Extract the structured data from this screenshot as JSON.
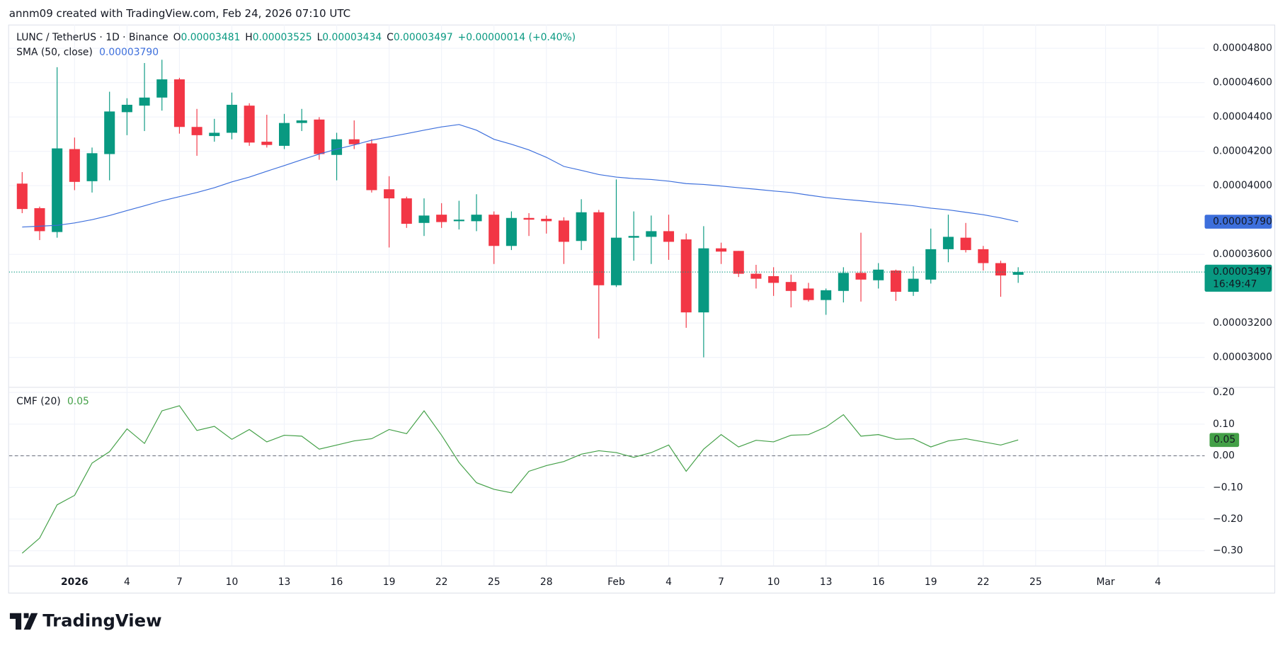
{
  "header": {
    "credit": "annm09 created with TradingView.com, Feb 24, 2026 07:10 UTC"
  },
  "footer": {
    "brand": "TradingView"
  },
  "chart_data": {
    "type": "candlestick",
    "title": "LUNC / TetherUS · 1D · Binance",
    "ohlc_labels": [
      "O",
      "H",
      "L",
      "C"
    ],
    "change_label": "+0.00000014 (+0.40%)",
    "countdown": "16:49:47",
    "up_color": "#089981",
    "down_color": "#f23645",
    "x": [
      "2025-12-29",
      "2025-12-30",
      "2025-12-31",
      "2026-01-01",
      "2026-01-02",
      "2026-01-03",
      "2026-01-04",
      "2026-01-05",
      "2026-01-06",
      "2026-01-07",
      "2026-01-08",
      "2026-01-09",
      "2026-01-10",
      "2026-01-11",
      "2026-01-12",
      "2026-01-13",
      "2026-01-14",
      "2026-01-15",
      "2026-01-16",
      "2026-01-17",
      "2026-01-18",
      "2026-01-19",
      "2026-01-20",
      "2026-01-21",
      "2026-01-22",
      "2026-01-23",
      "2026-01-24",
      "2026-01-25",
      "2026-01-26",
      "2026-01-27",
      "2026-01-28",
      "2026-01-29",
      "2026-01-30",
      "2026-01-31",
      "2026-02-01",
      "2026-02-02",
      "2026-02-03",
      "2026-02-04",
      "2026-02-05",
      "2026-02-06",
      "2026-02-07",
      "2026-02-08",
      "2026-02-09",
      "2026-02-10",
      "2026-02-11",
      "2026-02-12",
      "2026-02-13",
      "2026-02-14",
      "2026-02-15",
      "2026-02-16",
      "2026-02-17",
      "2026-02-18",
      "2026-02-19",
      "2026-02-20",
      "2026-02-21",
      "2026-02-22",
      "2026-02-23",
      "2026-02-24"
    ],
    "open": [
      4.012e-05,
      3.869e-05,
      3.73e-05,
      4.213e-05,
      4.026e-05,
      4.184e-05,
      4.428e-05,
      4.466e-05,
      4.513e-05,
      4.619e-05,
      4.342e-05,
      4.289e-05,
      4.308e-05,
      4.466e-05,
      4.256e-05,
      4.232e-05,
      4.365e-05,
      4.385e-05,
      4.179e-05,
      4.27e-05,
      4.246e-05,
      3.979e-05,
      3.926e-05,
      3.783e-05,
      3.831e-05,
      3.793e-05,
      3.793e-05,
      3.831e-05,
      3.649e-05,
      3.812e-05,
      3.807e-05,
      3.797e-05,
      3.678e-05,
      3.845e-05,
      3.42e-05,
      3.697e-05,
      3.702e-05,
      3.735e-05,
      3.687e-05,
      3.262e-05,
      3.635e-05,
      3.62e-05,
      3.487e-05,
      3.473e-05,
      3.439e-05,
      3.401e-05,
      3.334e-05,
      3.387e-05,
      3.492e-05,
      3.449e-05,
      3.506e-05,
      3.382e-05,
      3.453e-05,
      3.63e-05,
      3.697e-05,
      3.63e-05,
      3.549e-05,
      3.481e-05
    ],
    "high": [
      4.079e-05,
      3.878e-05,
      4.69e-05,
      4.28e-05,
      4.222e-05,
      4.547e-05,
      4.509e-05,
      4.714e-05,
      4.733e-05,
      4.628e-05,
      4.447e-05,
      4.389e-05,
      4.542e-05,
      4.48e-05,
      4.413e-05,
      4.418e-05,
      4.447e-05,
      4.399e-05,
      4.308e-05,
      4.38e-05,
      4.27e-05,
      4.055e-05,
      3.936e-05,
      3.926e-05,
      3.898e-05,
      3.912e-05,
      3.95e-05,
      3.85e-05,
      3.85e-05,
      3.84e-05,
      3.826e-05,
      3.816e-05,
      3.921e-05,
      3.859e-05,
      4.036e-05,
      3.85e-05,
      3.826e-05,
      3.831e-05,
      3.721e-05,
      3.764e-05,
      3.668e-05,
      3.62e-05,
      3.539e-05,
      3.525e-05,
      3.482e-05,
      3.434e-05,
      3.401e-05,
      3.525e-05,
      3.726e-05,
      3.549e-05,
      3.511e-05,
      3.53e-05,
      3.75e-05,
      3.831e-05,
      3.783e-05,
      3.649e-05,
      3.563e-05,
      3.525e-05
    ],
    "low": [
      3.84e-05,
      3.683e-05,
      3.697e-05,
      3.974e-05,
      3.96e-05,
      4.031e-05,
      4.294e-05,
      4.318e-05,
      4.437e-05,
      4.303e-05,
      4.174e-05,
      4.256e-05,
      4.27e-05,
      4.232e-05,
      4.222e-05,
      4.213e-05,
      4.318e-05,
      4.151e-05,
      4.031e-05,
      4.213e-05,
      3.96e-05,
      3.64e-05,
      3.754e-05,
      3.707e-05,
      3.754e-05,
      3.745e-05,
      3.735e-05,
      3.544e-05,
      3.625e-05,
      3.707e-05,
      3.721e-05,
      3.544e-05,
      3.625e-05,
      3.11e-05,
      3.41e-05,
      3.563e-05,
      3.544e-05,
      3.568e-05,
      3.172e-05,
      3e-05,
      3.544e-05,
      3.468e-05,
      3.401e-05,
      3.358e-05,
      3.291e-05,
      3.325e-05,
      3.248e-05,
      3.32e-05,
      3.325e-05,
      3.401e-05,
      3.329e-05,
      3.358e-05,
      3.43e-05,
      3.554e-05,
      3.611e-05,
      3.506e-05,
      3.353e-05,
      3.434e-05
    ],
    "close": [
      3.864e-05,
      3.735e-05,
      4.217e-05,
      4.022e-05,
      4.189e-05,
      4.432e-05,
      4.471e-05,
      4.513e-05,
      4.619e-05,
      4.342e-05,
      4.294e-05,
      4.308e-05,
      4.471e-05,
      4.251e-05,
      4.237e-05,
      4.365e-05,
      4.38e-05,
      4.184e-05,
      4.27e-05,
      4.241e-05,
      3.974e-05,
      3.926e-05,
      3.778e-05,
      3.826e-05,
      3.788e-05,
      3.802e-05,
      3.831e-05,
      3.649e-05,
      3.812e-05,
      3.802e-05,
      3.793e-05,
      3.673e-05,
      3.845e-05,
      3.42e-05,
      3.697e-05,
      3.707e-05,
      3.735e-05,
      3.673e-05,
      3.262e-05,
      3.635e-05,
      3.616e-05,
      3.487e-05,
      3.458e-05,
      3.434e-05,
      3.387e-05,
      3.334e-05,
      3.391e-05,
      3.492e-05,
      3.453e-05,
      3.511e-05,
      3.382e-05,
      3.458e-05,
      3.63e-05,
      3.702e-05,
      3.625e-05,
      3.549e-05,
      3.477e-05,
      3.497e-05
    ],
    "overlay": {
      "name": "SMA (50, close)",
      "color": "#3d6fdc",
      "value_label": "0.00003790",
      "values": [
        3.759e-05,
        3.764e-05,
        3.769e-05,
        3.783e-05,
        3.802e-05,
        3.826e-05,
        3.855e-05,
        3.883e-05,
        3.912e-05,
        3.936e-05,
        3.96e-05,
        3.988e-05,
        4.022e-05,
        4.05e-05,
        4.084e-05,
        4.117e-05,
        4.151e-05,
        4.184e-05,
        4.213e-05,
        4.237e-05,
        4.265e-05,
        4.284e-05,
        4.303e-05,
        4.323e-05,
        4.342e-05,
        4.356e-05,
        4.323e-05,
        4.27e-05,
        4.241e-05,
        4.208e-05,
        4.165e-05,
        4.112e-05,
        4.089e-05,
        4.065e-05,
        4.05e-05,
        4.041e-05,
        4.036e-05,
        4.026e-05,
        4.012e-05,
        4.007e-05,
        3.998e-05,
        3.988e-05,
        3.979e-05,
        3.969e-05,
        3.96e-05,
        3.945e-05,
        3.931e-05,
        3.921e-05,
        3.912e-05,
        3.902e-05,
        3.893e-05,
        3.883e-05,
        3.869e-05,
        3.859e-05,
        3.845e-05,
        3.831e-05,
        3.812e-05,
        3.79e-05
      ]
    },
    "xlim": [
      "2025-12-28",
      "2026-03-07"
    ],
    "xticks": [
      {
        "value": "2026-01-01",
        "label": "2026"
      },
      {
        "value": "2026-01-04",
        "label": "4"
      },
      {
        "value": "2026-01-07",
        "label": "7"
      },
      {
        "value": "2026-01-10",
        "label": "10"
      },
      {
        "value": "2026-01-13",
        "label": "13"
      },
      {
        "value": "2026-01-16",
        "label": "16"
      },
      {
        "value": "2026-01-19",
        "label": "19"
      },
      {
        "value": "2026-01-22",
        "label": "22"
      },
      {
        "value": "2026-01-25",
        "label": "25"
      },
      {
        "value": "2026-01-28",
        "label": "28"
      },
      {
        "value": "2026-02-01",
        "label": "Feb"
      },
      {
        "value": "2026-02-04",
        "label": "4"
      },
      {
        "value": "2026-02-07",
        "label": "7"
      },
      {
        "value": "2026-02-10",
        "label": "10"
      },
      {
        "value": "2026-02-13",
        "label": "13"
      },
      {
        "value": "2026-02-16",
        "label": "16"
      },
      {
        "value": "2026-02-19",
        "label": "19"
      },
      {
        "value": "2026-02-22",
        "label": "22"
      },
      {
        "value": "2026-02-25",
        "label": "25"
      },
      {
        "value": "2026-03-01",
        "label": "Mar"
      },
      {
        "value": "2026-03-04",
        "label": "4"
      }
    ],
    "ylim": [
      2.828e-05,
      4.938e-05
    ],
    "yticks": [
      {
        "value": 4.8e-05,
        "label": "0.00004800"
      },
      {
        "value": 4.6e-05,
        "label": "0.00004600"
      },
      {
        "value": 4.4e-05,
        "label": "0.00004400"
      },
      {
        "value": 4.2e-05,
        "label": "0.00004200"
      },
      {
        "value": 4e-05,
        "label": "0.00004000"
      },
      {
        "value": 3.6e-05,
        "label": "0.00003600"
      },
      {
        "value": 3.2e-05,
        "label": "0.00003200"
      },
      {
        "value": 3e-05,
        "label": "0.00003000"
      }
    ],
    "grid": true,
    "indicators": [
      {
        "type": "line",
        "name": "CMF (20)",
        "color": "#43a047",
        "ylim": [
          -0.347,
          0.215
        ],
        "yticks": [
          {
            "value": 0.2,
            "label": "0.20"
          },
          {
            "value": 0.1,
            "label": "0.10"
          },
          {
            "value": 0,
            "label": "0.00"
          },
          {
            "value": -0.1,
            "label": "−0.10"
          },
          {
            "value": -0.2,
            "label": "−0.20"
          },
          {
            "value": -0.3,
            "label": "−0.30"
          }
        ],
        "values": [
          -0.308,
          -0.26,
          -0.155,
          -0.125,
          -0.023,
          0.013,
          0.085,
          0.039,
          0.142,
          0.158,
          0.08,
          0.093,
          0.052,
          0.083,
          0.044,
          0.065,
          0.062,
          0.021,
          0.034,
          0.047,
          0.054,
          0.083,
          0.07,
          0.142,
          0.065,
          -0.021,
          -0.085,
          -0.106,
          -0.117,
          -0.049,
          -0.031,
          -0.018,
          0.005,
          0.016,
          0.01,
          -0.005,
          0.01,
          0.034,
          -0.049,
          0.021,
          0.067,
          0.028,
          0.049,
          0.044,
          0.065,
          0.067,
          0.091,
          0.13,
          0.062,
          0.067,
          0.052,
          0.054,
          0.028,
          0.047,
          0.054,
          0.044,
          0.034,
          0.05
        ]
      }
    ]
  }
}
